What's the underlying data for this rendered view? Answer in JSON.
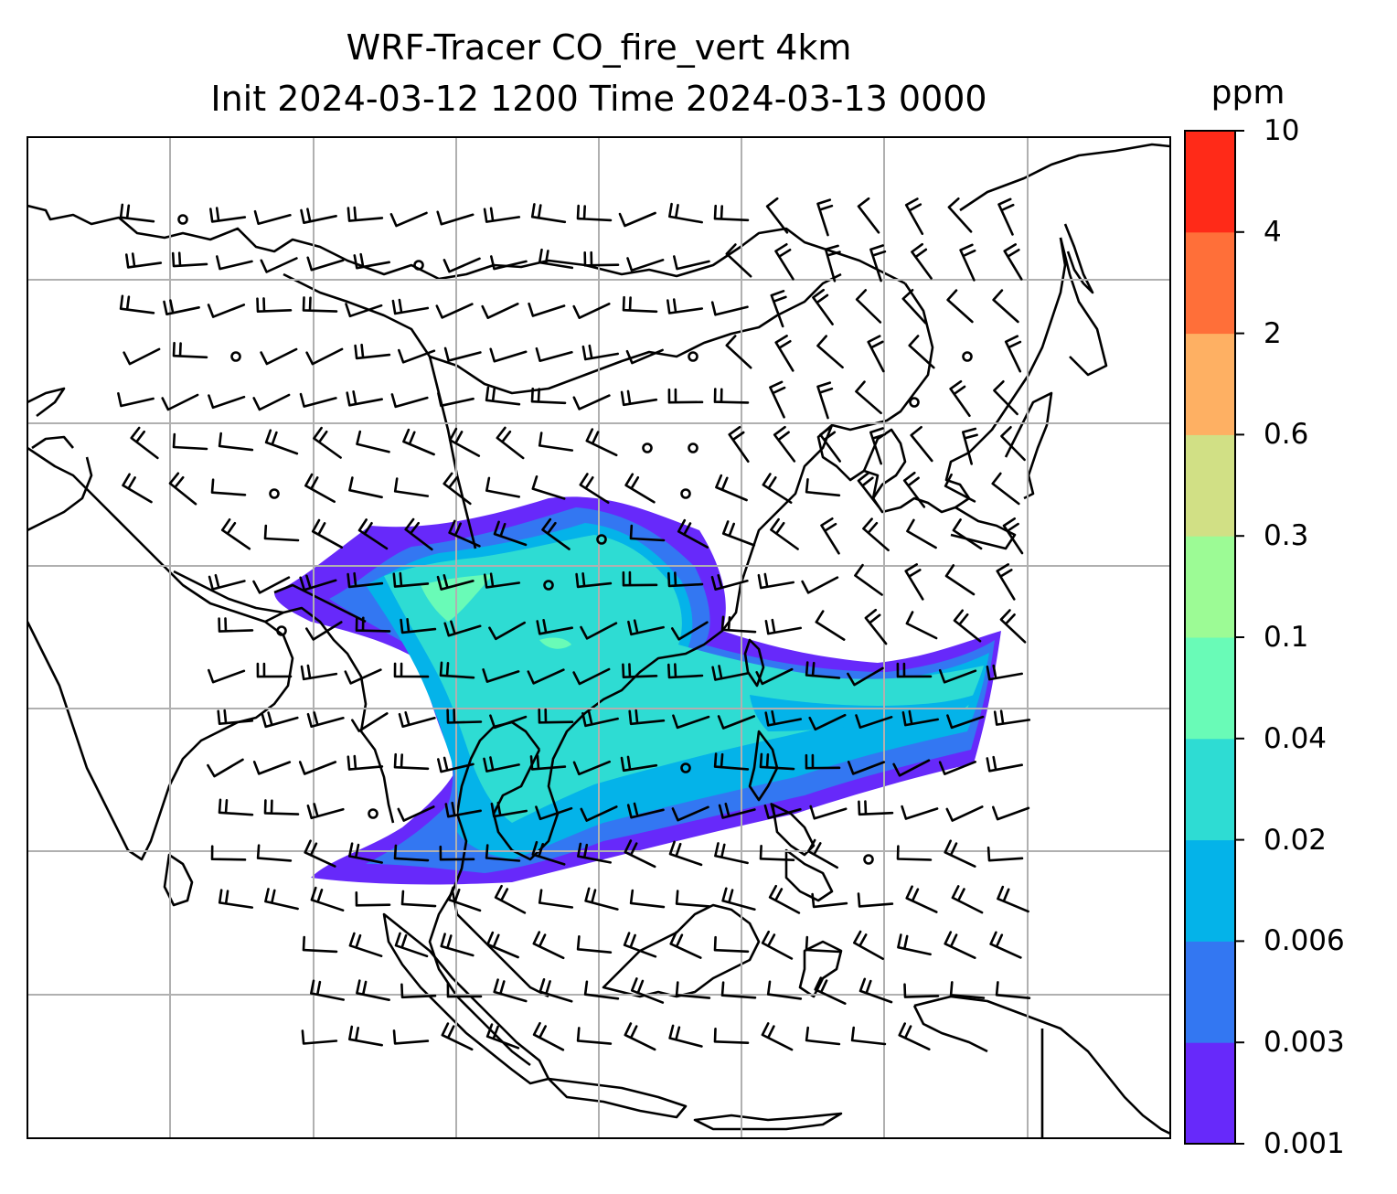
{
  "title_line1": "WRF-Tracer CO_fire_vert 4km",
  "title_line2": "Init 2024-03-12 1200 Time 2024-03-13 0000",
  "colorbar": {
    "unit": "ppm",
    "levels": [
      "0.001",
      "0.003",
      "0.006",
      "0.02",
      "0.04",
      "0.1",
      "0.3",
      "0.6",
      "2",
      "4",
      "10"
    ],
    "colors": [
      "#6729fa",
      "#3377f2",
      "#04b3e9",
      "#2edcd3",
      "#69fbb7",
      "#9cfb95",
      "#d1e085",
      "#feb063",
      "#ff6f39",
      "#ff2a18"
    ]
  },
  "map": {
    "features": [
      "coastlines",
      "country-borders",
      "gridlines",
      "wind-barbs",
      "co-concentration-fill"
    ]
  }
}
